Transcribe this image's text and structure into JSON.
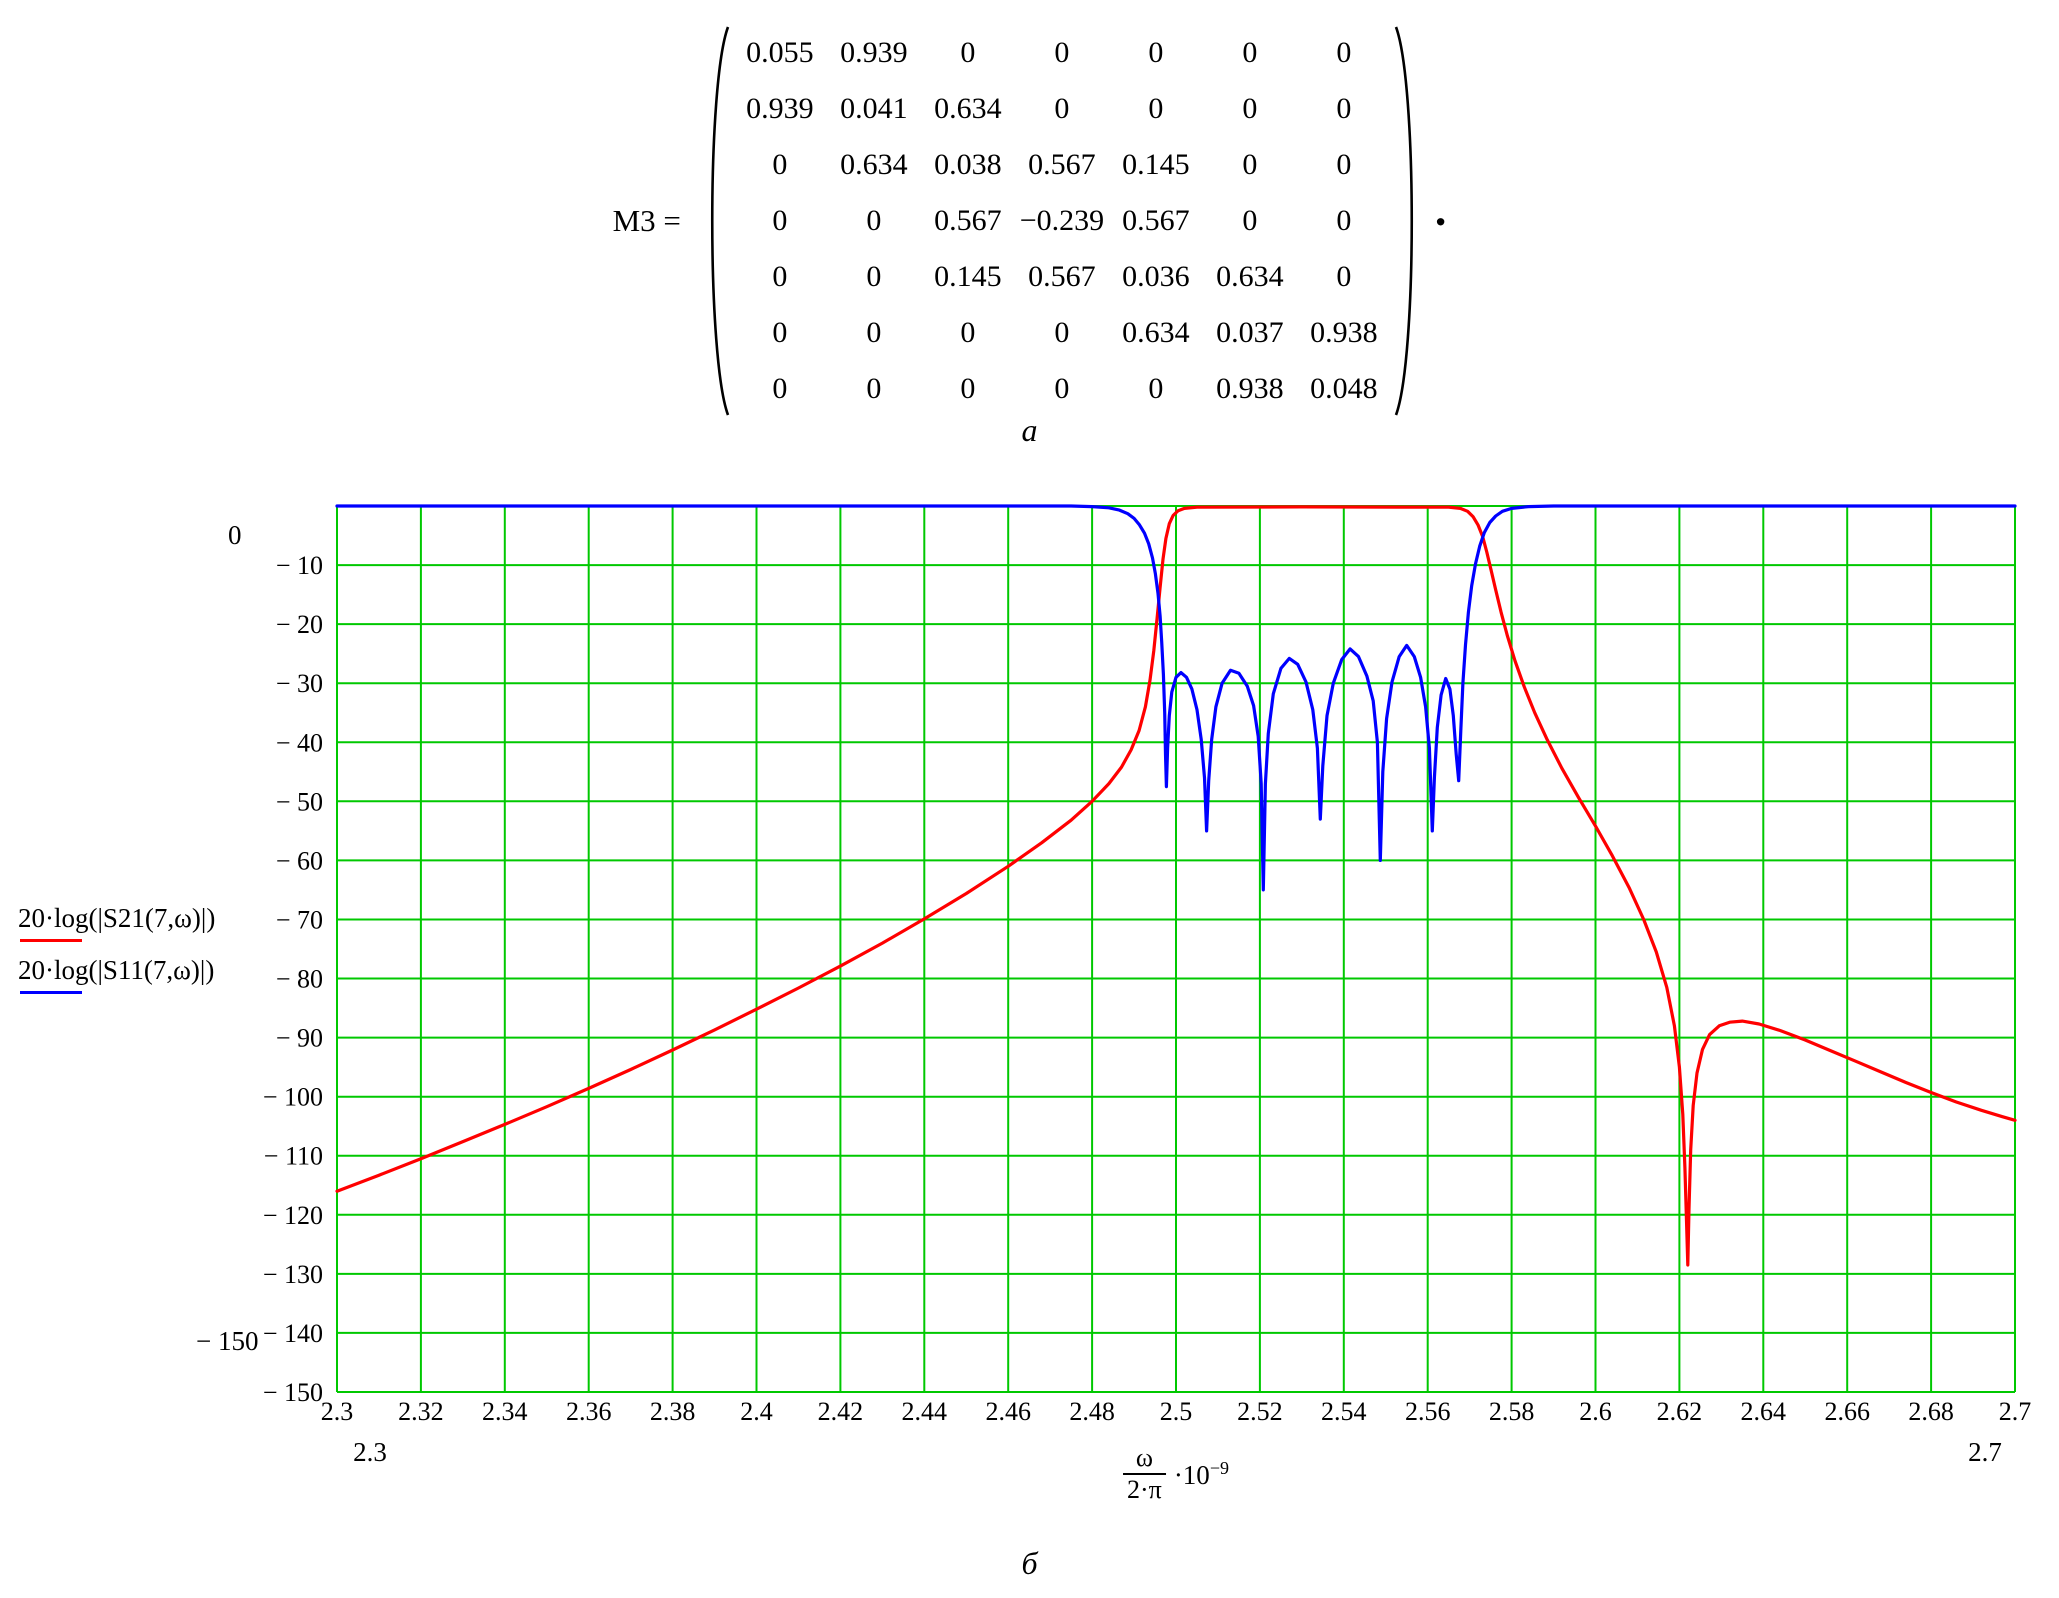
{
  "equation": {
    "lhs": "M3",
    "equals": "=",
    "trailing_punct": ".",
    "matrix_rows": [
      [
        "0.055",
        "0.939",
        "0",
        "0",
        "0",
        "0",
        "0"
      ],
      [
        "0.939",
        "0.041",
        "0.634",
        "0",
        "0",
        "0",
        "0"
      ],
      [
        "0",
        "0.634",
        "0.038",
        "0.567",
        "0.145",
        "0",
        "0"
      ],
      [
        "0",
        "0",
        "0.567",
        "−0.239",
        "0.567",
        "0",
        "0"
      ],
      [
        "0",
        "0",
        "0.145",
        "0.567",
        "0.036",
        "0.634",
        "0"
      ],
      [
        "0",
        "0",
        "0",
        "0",
        "0.634",
        "0.037",
        "0.938"
      ],
      [
        "0",
        "0",
        "0",
        "0",
        "0",
        "0.938",
        "0.048"
      ]
    ]
  },
  "sublabel_a": "а",
  "sublabel_b": "б",
  "chart_data": {
    "type": "line",
    "title": "",
    "grid": true,
    "grid_color": "#00c800",
    "xlim": [
      2.3,
      2.7
    ],
    "ylim": [
      -150,
      0
    ],
    "xlabel": {
      "numerator": "ω",
      "denominator": "2·π",
      "multiplier": "·10",
      "exponent": "−9"
    },
    "ylabel": "",
    "limits": {
      "y_top": "0",
      "y_bottom": "− 150",
      "x_left": "2.3",
      "x_right": "2.7"
    },
    "legend_position": "left",
    "legend": [
      {
        "label": "20·log(|S21(7,ω)|)",
        "color": "#ff0000"
      },
      {
        "label": "20·log(|S11(7,ω)|)",
        "color": "#0000ff"
      }
    ],
    "x_axis": [
      {
        "v": 2.3,
        "label": "2.3"
      },
      {
        "v": 2.32,
        "label": "2.32"
      },
      {
        "v": 2.34,
        "label": "2.34"
      },
      {
        "v": 2.36,
        "label": "2.36"
      },
      {
        "v": 2.38,
        "label": "2.38"
      },
      {
        "v": 2.4,
        "label": "2.4"
      },
      {
        "v": 2.42,
        "label": "2.42"
      },
      {
        "v": 2.44,
        "label": "2.44"
      },
      {
        "v": 2.46,
        "label": "2.46"
      },
      {
        "v": 2.48,
        "label": "2.48"
      },
      {
        "v": 2.5,
        "label": "2.5"
      },
      {
        "v": 2.52,
        "label": "2.52"
      },
      {
        "v": 2.54,
        "label": "2.54"
      },
      {
        "v": 2.56,
        "label": "2.56"
      },
      {
        "v": 2.58,
        "label": "2.58"
      },
      {
        "v": 2.6,
        "label": "2.6"
      },
      {
        "v": 2.62,
        "label": "2.62"
      },
      {
        "v": 2.64,
        "label": "2.64"
      },
      {
        "v": 2.66,
        "label": "2.66"
      },
      {
        "v": 2.68,
        "label": "2.68"
      },
      {
        "v": 2.7,
        "label": "2.7"
      }
    ],
    "y_axis": [
      {
        "v": 0,
        "label": ""
      },
      {
        "v": -10,
        "label": "− 10"
      },
      {
        "v": -20,
        "label": "− 20"
      },
      {
        "v": -30,
        "label": "− 30"
      },
      {
        "v": -40,
        "label": "− 40"
      },
      {
        "v": -50,
        "label": "− 50"
      },
      {
        "v": -60,
        "label": "− 60"
      },
      {
        "v": -70,
        "label": "− 70"
      },
      {
        "v": -80,
        "label": "− 80"
      },
      {
        "v": -90,
        "label": "− 90"
      },
      {
        "v": -100,
        "label": "− 100"
      },
      {
        "v": -110,
        "label": "− 110"
      },
      {
        "v": -120,
        "label": "− 120"
      },
      {
        "v": -130,
        "label": "− 130"
      },
      {
        "v": -140,
        "label": "− 140"
      },
      {
        "v": -150,
        "label": "− 150"
      }
    ],
    "series": [
      {
        "name": "S21",
        "color": "#ff0000",
        "points": [
          [
            2.3,
            -116
          ],
          [
            2.31,
            -113.3
          ],
          [
            2.32,
            -110.5
          ],
          [
            2.33,
            -107.6
          ],
          [
            2.34,
            -104.7
          ],
          [
            2.35,
            -101.7
          ],
          [
            2.36,
            -98.6
          ],
          [
            2.37,
            -95.4
          ],
          [
            2.38,
            -92.1
          ],
          [
            2.39,
            -88.7
          ],
          [
            2.4,
            -85.2
          ],
          [
            2.41,
            -81.6
          ],
          [
            2.42,
            -77.9
          ],
          [
            2.43,
            -74.0
          ],
          [
            2.44,
            -69.9
          ],
          [
            2.45,
            -65.6
          ],
          [
            2.46,
            -61.0
          ],
          [
            2.468,
            -57.0
          ],
          [
            2.475,
            -53.2
          ],
          [
            2.48,
            -50.0
          ],
          [
            2.484,
            -47.0
          ],
          [
            2.487,
            -44.2
          ],
          [
            2.4893,
            -41.3
          ],
          [
            2.4912,
            -38.0
          ],
          [
            2.4927,
            -34.0
          ],
          [
            2.4938,
            -29.5
          ],
          [
            2.4947,
            -24.5
          ],
          [
            2.4955,
            -19.0
          ],
          [
            2.4962,
            -13.8
          ],
          [
            2.4969,
            -9.0
          ],
          [
            2.4976,
            -5.5
          ],
          [
            2.4984,
            -3.0
          ],
          [
            2.4993,
            -1.6
          ],
          [
            2.5005,
            -0.8
          ],
          [
            2.502,
            -0.4
          ],
          [
            2.505,
            -0.2
          ],
          [
            2.53,
            -0.15
          ],
          [
            2.565,
            -0.2
          ],
          [
            2.5678,
            -0.4
          ],
          [
            2.5695,
            -0.9
          ],
          [
            2.5708,
            -1.8
          ],
          [
            2.572,
            -3.2
          ],
          [
            2.5731,
            -5.2
          ],
          [
            2.5741,
            -7.8
          ],
          [
            2.5751,
            -10.8
          ],
          [
            2.5762,
            -14.2
          ],
          [
            2.5775,
            -18.0
          ],
          [
            2.579,
            -22.0
          ],
          [
            2.5808,
            -26.2
          ],
          [
            2.583,
            -30.6
          ],
          [
            2.5855,
            -35.0
          ],
          [
            2.5885,
            -39.6
          ],
          [
            2.592,
            -44.4
          ],
          [
            2.596,
            -49.4
          ],
          [
            2.6,
            -54.2
          ],
          [
            2.604,
            -59.2
          ],
          [
            2.608,
            -64.6
          ],
          [
            2.6115,
            -70.0
          ],
          [
            2.6145,
            -75.5
          ],
          [
            2.617,
            -81.5
          ],
          [
            2.6188,
            -88.0
          ],
          [
            2.62,
            -95.0
          ],
          [
            2.6208,
            -103.0
          ],
          [
            2.6213,
            -112.0
          ],
          [
            2.6217,
            -121.0
          ],
          [
            2.622,
            -128.5
          ],
          [
            2.6223,
            -119.0
          ],
          [
            2.6227,
            -109.0
          ],
          [
            2.6233,
            -101.5
          ],
          [
            2.6242,
            -96.0
          ],
          [
            2.6255,
            -92.0
          ],
          [
            2.6272,
            -89.5
          ],
          [
            2.6295,
            -88.0
          ],
          [
            2.632,
            -87.4
          ],
          [
            2.635,
            -87.2
          ],
          [
            2.639,
            -87.7
          ],
          [
            2.644,
            -88.8
          ],
          [
            2.65,
            -90.4
          ],
          [
            2.656,
            -92.2
          ],
          [
            2.662,
            -94.0
          ],
          [
            2.668,
            -95.8
          ],
          [
            2.674,
            -97.6
          ],
          [
            2.68,
            -99.3
          ],
          [
            2.686,
            -100.9
          ],
          [
            2.692,
            -102.3
          ],
          [
            2.697,
            -103.4
          ],
          [
            2.7,
            -104.0
          ]
        ]
      },
      {
        "name": "S11",
        "color": "#0000ff",
        "points": [
          [
            2.3,
            0
          ],
          [
            2.475,
            0
          ],
          [
            2.48,
            -0.1
          ],
          [
            2.484,
            -0.3
          ],
          [
            2.4865,
            -0.7
          ],
          [
            2.4885,
            -1.3
          ],
          [
            2.49,
            -2.1
          ],
          [
            2.4913,
            -3.2
          ],
          [
            2.4925,
            -4.6
          ],
          [
            2.4935,
            -6.4
          ],
          [
            2.4944,
            -8.8
          ],
          [
            2.4951,
            -11.5
          ],
          [
            2.4957,
            -14.8
          ],
          [
            2.4962,
            -18.6
          ],
          [
            2.4966,
            -23.0
          ],
          [
            2.497,
            -28.5
          ],
          [
            2.4973,
            -35.0
          ],
          [
            2.4975,
            -42.0
          ],
          [
            2.4977,
            -47.5
          ],
          [
            2.498,
            -41.0
          ],
          [
            2.4984,
            -35.5
          ],
          [
            2.499,
            -31.5
          ],
          [
            2.5,
            -29.0
          ],
          [
            2.5012,
            -28.2
          ],
          [
            2.5025,
            -29.0
          ],
          [
            2.5038,
            -31.0
          ],
          [
            2.505,
            -34.5
          ],
          [
            2.506,
            -39.5
          ],
          [
            2.5068,
            -46.0
          ],
          [
            2.5073,
            -55.0
          ],
          [
            2.5078,
            -46.5
          ],
          [
            2.5085,
            -39.5
          ],
          [
            2.5095,
            -34.0
          ],
          [
            2.511,
            -30.0
          ],
          [
            2.513,
            -27.8
          ],
          [
            2.515,
            -28.3
          ],
          [
            2.517,
            -30.5
          ],
          [
            2.5185,
            -33.8
          ],
          [
            2.5196,
            -39.0
          ],
          [
            2.5203,
            -47.0
          ],
          [
            2.5208,
            -65.0
          ],
          [
            2.5213,
            -47.0
          ],
          [
            2.522,
            -38.5
          ],
          [
            2.5232,
            -31.8
          ],
          [
            2.525,
            -27.5
          ],
          [
            2.527,
            -25.8
          ],
          [
            2.529,
            -26.8
          ],
          [
            2.531,
            -29.8
          ],
          [
            2.5326,
            -34.5
          ],
          [
            2.5337,
            -41.0
          ],
          [
            2.5344,
            -53.0
          ],
          [
            2.535,
            -44.0
          ],
          [
            2.536,
            -35.5
          ],
          [
            2.5375,
            -30.0
          ],
          [
            2.5395,
            -26.0
          ],
          [
            2.5415,
            -24.2
          ],
          [
            2.5435,
            -25.5
          ],
          [
            2.5455,
            -28.8
          ],
          [
            2.547,
            -33.0
          ],
          [
            2.548,
            -40.0
          ],
          [
            2.5487,
            -60.0
          ],
          [
            2.5493,
            -45.0
          ],
          [
            2.5502,
            -36.0
          ],
          [
            2.5515,
            -29.8
          ],
          [
            2.5532,
            -25.5
          ],
          [
            2.555,
            -23.6
          ],
          [
            2.5568,
            -25.5
          ],
          [
            2.5583,
            -29.0
          ],
          [
            2.5595,
            -34.0
          ],
          [
            2.5604,
            -41.0
          ],
          [
            2.5611,
            -55.0
          ],
          [
            2.5616,
            -46.0
          ],
          [
            2.5623,
            -37.5
          ],
          [
            2.5632,
            -32.0
          ],
          [
            2.5643,
            -29.2
          ],
          [
            2.5653,
            -31.0
          ],
          [
            2.5661,
            -35.5
          ],
          [
            2.5668,
            -42.0
          ],
          [
            2.5674,
            -46.5
          ],
          [
            2.5679,
            -38.0
          ],
          [
            2.5684,
            -30.0
          ],
          [
            2.569,
            -23.5
          ],
          [
            2.5697,
            -18.0
          ],
          [
            2.5705,
            -13.5
          ],
          [
            2.5714,
            -9.8
          ],
          [
            2.5724,
            -6.8
          ],
          [
            2.5735,
            -4.5
          ],
          [
            2.5748,
            -2.8
          ],
          [
            2.5762,
            -1.7
          ],
          [
            2.5778,
            -0.9
          ],
          [
            2.58,
            -0.4
          ],
          [
            2.584,
            -0.1
          ],
          [
            2.59,
            0
          ],
          [
            2.7,
            0
          ]
        ]
      }
    ]
  }
}
